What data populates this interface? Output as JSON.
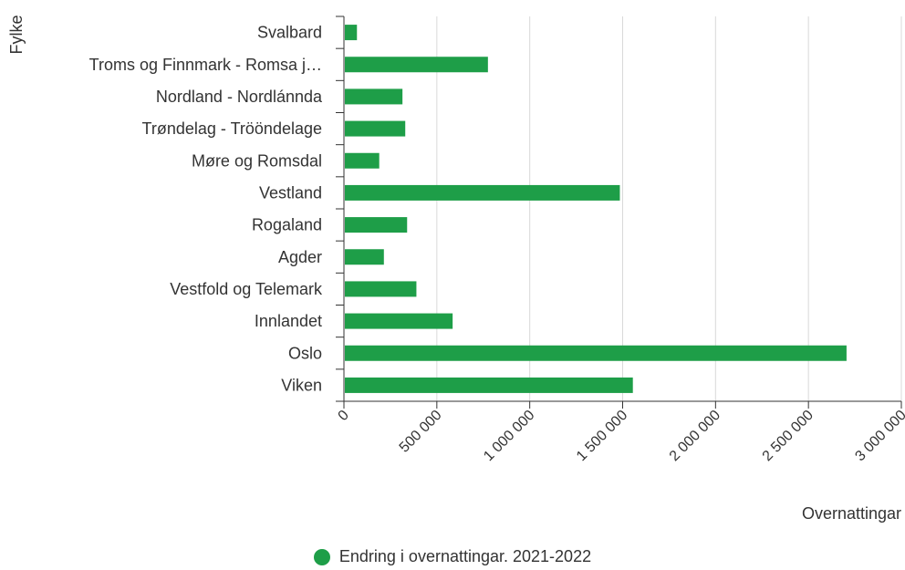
{
  "chart_data": {
    "type": "bar",
    "orientation": "horizontal",
    "categories": [
      "Svalbard",
      "Troms og Finnmark - Romsa j…",
      "Nordland - Nordlánnda",
      "Trøndelag - Trööndelage",
      "Møre og Romsdal",
      "Vestland",
      "Rogaland",
      "Agder",
      "Vestfold og Telemark",
      "Innlandet",
      "Oslo",
      "Viken"
    ],
    "series": [
      {
        "name": "Endring i overnattingar. 2021-2022",
        "color": "#1e9e48",
        "values": [
          70000,
          775000,
          315000,
          330000,
          190000,
          1485000,
          340000,
          215000,
          390000,
          585000,
          2705000,
          1555000
        ]
      }
    ],
    "xlabel": "Overnattingar",
    "ylabel": "Fylke",
    "xlim": [
      0,
      3000000
    ],
    "xticks": [
      0,
      500000,
      1000000,
      1500000,
      2000000,
      2500000,
      3000000
    ],
    "xtick_labels": [
      "0",
      "500 000",
      "1 000 000",
      "1 500 000",
      "2 000 000",
      "2 500 000",
      "3 000 000"
    ],
    "grid": "vertical",
    "legend_position": "bottom"
  },
  "legend": {
    "label": "Endring i overnattingar. 2021-2022",
    "color": "#1e9e48"
  }
}
